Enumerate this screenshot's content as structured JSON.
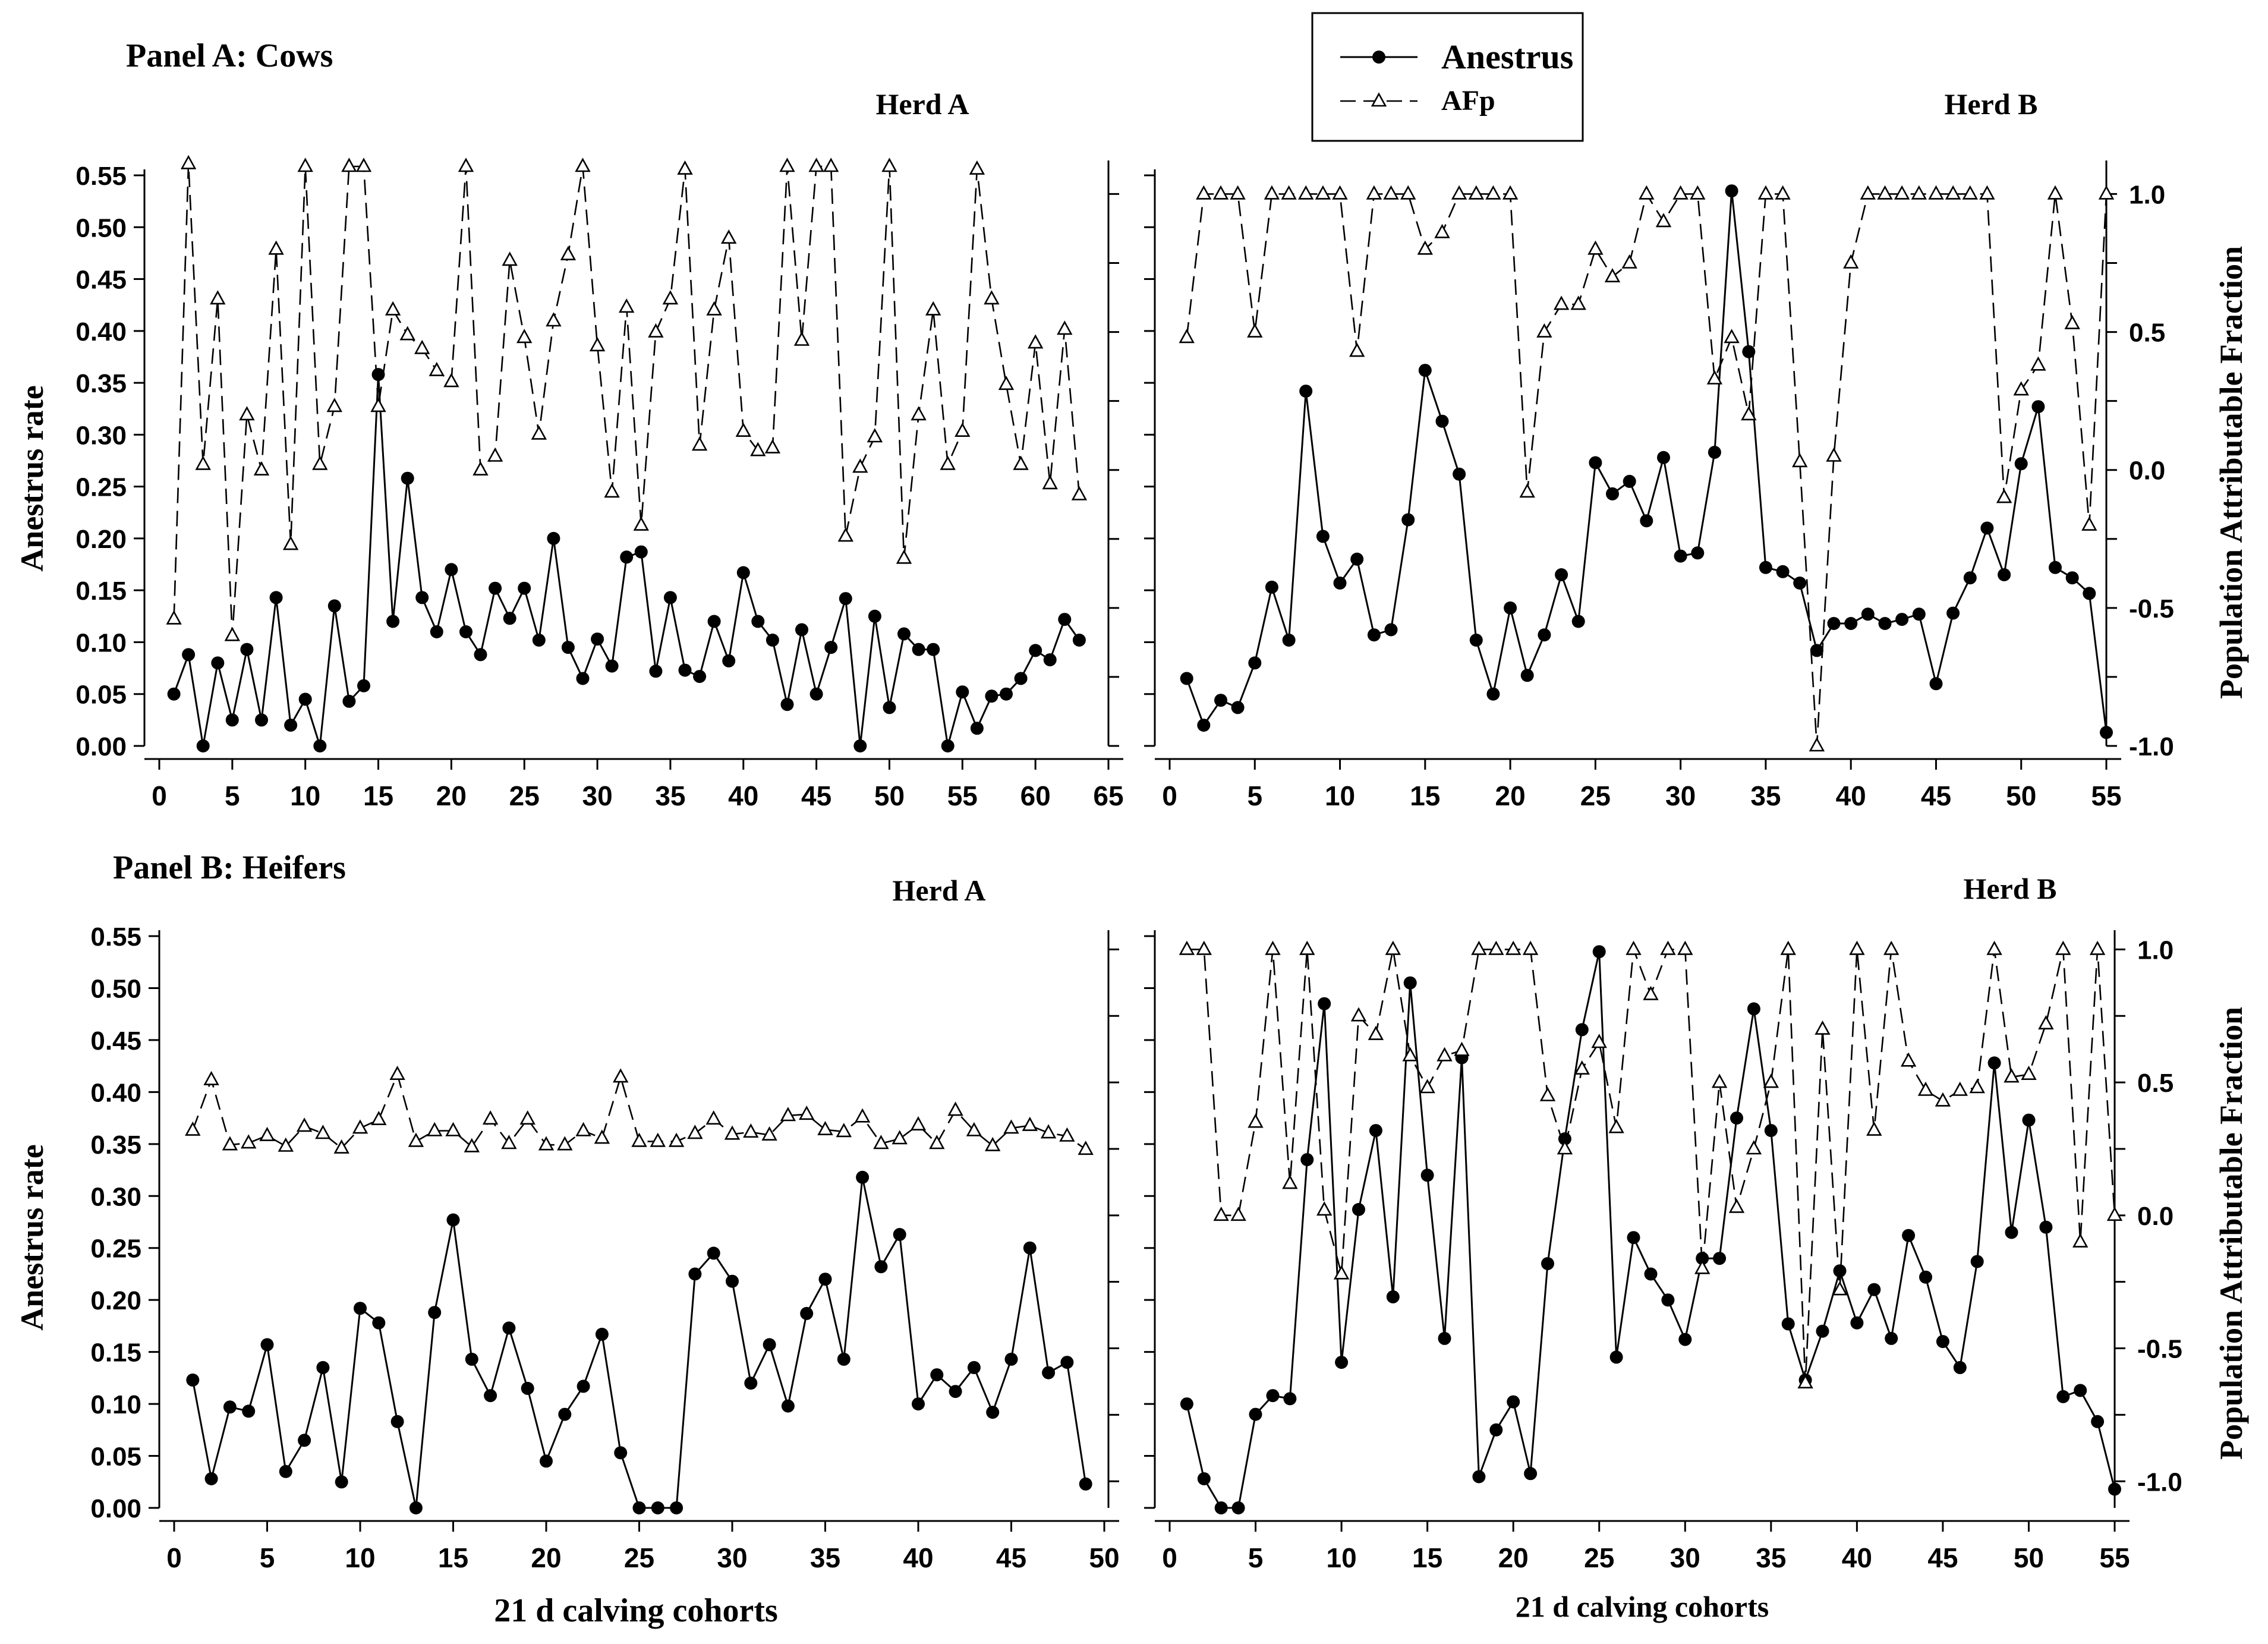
{
  "legend": {
    "anestrus_label": "Anestrus",
    "afp_label": "AFp"
  },
  "panels": {
    "a_label": "Panel A: Cows",
    "b_label": "Panel B: Heifers"
  },
  "axis_labels": {
    "left_ylabel": "Anestrus rate",
    "right_ylabel": "Population Attributable Fraction",
    "xlabel": "21 d calving cohorts"
  },
  "chart_data": [
    {
      "id": "cows_herd_a",
      "type": "line",
      "title": "Herd A",
      "xlim": [
        0,
        65
      ],
      "xticks": [
        0,
        5,
        10,
        15,
        20,
        25,
        30,
        35,
        40,
        45,
        50,
        55,
        60,
        65
      ],
      "ylim": [
        0,
        0.55
      ],
      "yticks": [
        "0.00",
        "0.05",
        "0.10",
        "0.15",
        "0.20",
        "0.25",
        "0.30",
        "0.35",
        "0.40",
        "0.45",
        "0.50",
        "0.55"
      ],
      "y2lim": [
        -1,
        1.1
      ],
      "series": [
        {
          "name": "Anestrus",
          "values": [
            0.05,
            0.088,
            0,
            0.08,
            0.025,
            0.093,
            0.025,
            0.143,
            0.02,
            0.045,
            0,
            0.135,
            0.043,
            0.058,
            0.358,
            0.12,
            0.258,
            0.143,
            0.11,
            0.17,
            0.11,
            0.088,
            0.152,
            0.123,
            0.152,
            0.102,
            0.2,
            0.095,
            0.065,
            0.103,
            0.077,
            0.182,
            0.187,
            0.072,
            0.143,
            0.073,
            0.067,
            0.12,
            0.082,
            0.167,
            0.12,
            0.102,
            0.04,
            0.112,
            0.05,
            0.095,
            0.142,
            0,
            0.125,
            0.037,
            0.108,
            0.093,
            0.093,
            0,
            0.052,
            0.017,
            0.048,
            0.05,
            0.065,
            0.092,
            0.083,
            0.122,
            0.102
          ]
        },
        {
          "name": "AFp",
          "values": [
            -0.54,
            1.11,
            0.02,
            0.62,
            -0.6,
            0.2,
            0,
            0.8,
            -0.27,
            1.1,
            0.02,
            0.23,
            1.1,
            1.1,
            0.23,
            0.58,
            0.49,
            0.44,
            0.36,
            0.32,
            1.1,
            0,
            0.05,
            0.76,
            0.48,
            0.13,
            0.54,
            0.78,
            1.1,
            0.45,
            -0.08,
            0.59,
            -0.2,
            0.5,
            0.62,
            1.09,
            0.09,
            0.58,
            0.84,
            0.14,
            0.07,
            0.08,
            1.1,
            0.47,
            1.1,
            1.1,
            -0.24,
            0.01,
            0.12,
            1.1,
            -0.32,
            0.2,
            0.58,
            0.02,
            0.14,
            1.09,
            0.62,
            0.31,
            0.02,
            0.46,
            -0.05,
            0.51,
            -0.09
          ]
        }
      ]
    },
    {
      "id": "cows_herd_b",
      "type": "line",
      "title": "Herd B",
      "xlim": [
        0,
        55
      ],
      "xticks": [
        0,
        5,
        10,
        15,
        20,
        25,
        30,
        35,
        40,
        45,
        50,
        55
      ],
      "ylim": [
        0,
        0.55
      ],
      "y2lim": [
        -1,
        1.1
      ],
      "y2ticks": [
        "-1.0",
        "-0.5",
        "0.0",
        "0.5",
        "1.0"
      ],
      "series": [
        {
          "name": "Anestrus",
          "values": [
            0.065,
            0.02,
            0.044,
            0.037,
            0.08,
            0.153,
            0.102,
            0.342,
            0.202,
            0.157,
            0.18,
            0.107,
            0.112,
            0.218,
            0.362,
            0.313,
            0.262,
            0.102,
            0.05,
            0.133,
            0.068,
            0.107,
            0.165,
            0.12,
            0.273,
            0.243,
            0.255,
            0.217,
            0.278,
            0.183,
            0.186,
            0.283,
            0.535,
            0.38,
            0.172,
            0.168,
            0.157,
            0.092,
            0.118,
            0.118,
            0.127,
            0.118,
            0.122,
            0.127,
            0.06,
            0.128,
            0.162,
            0.21,
            0.165,
            0.272,
            0.327,
            0.172,
            0.162,
            0.147,
            0.013
          ]
        },
        {
          "name": "AFp",
          "values": [
            0.48,
            1,
            1,
            1,
            0.5,
            1,
            1,
            1,
            1,
            1,
            0.43,
            1,
            1,
            1,
            0.8,
            0.86,
            1,
            1,
            1,
            1,
            -0.08,
            0.5,
            0.6,
            0.6,
            0.8,
            0.7,
            0.75,
            1,
            0.9,
            1,
            1,
            0.33,
            0.48,
            0.2,
            1,
            1,
            0.03,
            -1,
            0.05,
            0.75,
            1,
            1,
            1,
            1,
            1,
            1,
            1,
            1,
            -0.1,
            0.29,
            0.38,
            1,
            0.53,
            -0.2,
            1
          ]
        }
      ]
    },
    {
      "id": "heifers_herd_a",
      "type": "line",
      "title": "Herd A",
      "xlim": [
        0,
        50
      ],
      "xticks": [
        0,
        5,
        10,
        15,
        20,
        25,
        30,
        35,
        40,
        45,
        50
      ],
      "ylim": [
        0,
        0.55
      ],
      "yticks": [
        "0.00",
        "0.05",
        "0.10",
        "0.15",
        "0.20",
        "0.25",
        "0.30",
        "0.35",
        "0.40",
        "0.45",
        "0.50",
        "0.55"
      ],
      "y2lim": [
        -1.1,
        1.05
      ],
      "series": [
        {
          "name": "Anestrus",
          "values": [
            0.123,
            0.028,
            0.097,
            0.093,
            0.157,
            0.035,
            0.065,
            0.135,
            0.025,
            0.192,
            0.178,
            0.083,
            0,
            0.188,
            0.277,
            0.143,
            0.108,
            0.173,
            0.115,
            0.045,
            0.09,
            0.117,
            0.167,
            0.053,
            0,
            0,
            0,
            0.225,
            0.245,
            0.218,
            0.12,
            0.157,
            0.098,
            0.187,
            0.22,
            0.143,
            0.318,
            0.232,
            0.263,
            0.1,
            0.128,
            0.112,
            0.135,
            0.092,
            0.143,
            0.25,
            0.13,
            0.14,
            0.023
          ]
        },
        {
          "name": "AFp",
          "values": [
            0.32,
            0.51,
            0.265,
            0.272,
            0.3,
            0.26,
            0.335,
            0.308,
            0.253,
            0.328,
            0.36,
            0.53,
            0.278,
            0.318,
            0.318,
            0.258,
            0.362,
            0.27,
            0.362,
            0.265,
            0.265,
            0.318,
            0.29,
            0.52,
            0.278,
            0.278,
            0.278,
            0.308,
            0.362,
            0.305,
            0.313,
            0.302,
            0.375,
            0.38,
            0.322,
            0.315,
            0.37,
            0.27,
            0.288,
            0.34,
            0.27,
            0.395,
            0.318,
            0.262,
            0.328,
            0.338,
            0.31,
            0.298,
            0.248
          ]
        }
      ]
    },
    {
      "id": "heifers_herd_b",
      "type": "line",
      "title": "Herd B",
      "xlim": [
        0,
        55
      ],
      "xticks": [
        0,
        5,
        10,
        15,
        20,
        25,
        30,
        35,
        40,
        45,
        50,
        55
      ],
      "ylim": [
        0,
        0.55
      ],
      "y2lim": [
        -1.1,
        1.05
      ],
      "y2ticks": [
        "-1.0",
        "-0.5",
        "0.0",
        "0.5",
        "1.0"
      ],
      "series": [
        {
          "name": "Anestrus",
          "values": [
            0.1,
            0.028,
            0,
            0,
            0.09,
            0.108,
            0.105,
            0.335,
            0.485,
            0.14,
            0.287,
            0.363,
            0.203,
            0.505,
            0.32,
            0.163,
            0.433,
            0.03,
            0.075,
            0.102,
            0.033,
            0.235,
            0.355,
            0.46,
            0.535,
            0.145,
            0.26,
            0.225,
            0.2,
            0.162,
            0.24,
            0.24,
            0.375,
            0.48,
            0.363,
            0.177,
            0.123,
            0.17,
            0.228,
            0.178,
            0.21,
            0.163,
            0.262,
            0.222,
            0.16,
            0.135,
            0.237,
            0.428,
            0.265,
            0.373,
            0.27,
            0.107,
            0.113,
            0.083,
            0.018
          ]
        },
        {
          "name": "AFp",
          "values": [
            1,
            1,
            0,
            0,
            0.35,
            1,
            0.12,
            1,
            0.02,
            -0.22,
            0.75,
            0.68,
            1,
            0.6,
            0.48,
            0.6,
            0.62,
            1,
            1,
            1,
            1,
            0.45,
            0.25,
            0.55,
            0.65,
            0.33,
            1,
            0.83,
            1,
            1,
            -0.2,
            0.5,
            0.03,
            0.25,
            0.5,
            1,
            -0.63,
            0.7,
            -0.28,
            1,
            0.32,
            1,
            0.58,
            0.47,
            0.43,
            0.47,
            0.48,
            1,
            0.52,
            0.53,
            0.72,
            1,
            -0.1,
            1,
            0
          ]
        }
      ]
    }
  ]
}
